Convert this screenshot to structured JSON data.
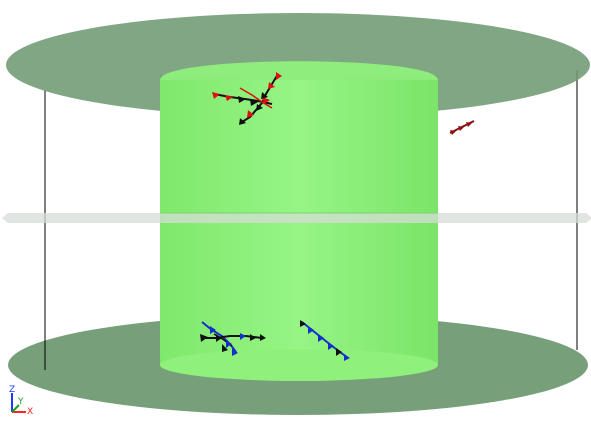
{
  "scene": {
    "background": "#ffffff",
    "colors": {
      "plate": "#6f9a73",
      "cylinder": "#8df27a",
      "cylinder_edge": "#79d867",
      "midplane": "#d7dcd7",
      "frame_line": "#000000",
      "chain_red": "#e01010",
      "chain_black": "#111111",
      "chain_blue": "#1530c8",
      "chain_darkred": "#8b0f0f"
    },
    "axes_triad": {
      "z_label": "Z",
      "y_label": "Y",
      "x_label": "X",
      "z_color": "#1a3cff",
      "y_color": "#1aa31a",
      "x_color": "#ff2020"
    },
    "icons": [
      "cylinder-shape",
      "plate-disc",
      "polymer-chain",
      "axes-triad-icon"
    ]
  }
}
